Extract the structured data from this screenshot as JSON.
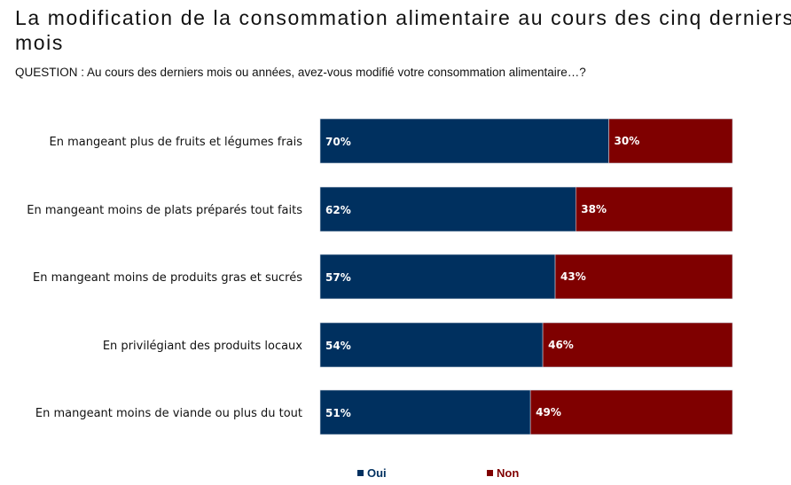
{
  "chart_data": {
    "type": "bar",
    "orientation": "horizontal",
    "stacked": true,
    "title": "La modification de la consommation alimentaire au cours des cinq derniers mois",
    "subtitle": "QUESTION : Au cours des derniers mois ou années, avez-vous modifié votre consommation alimentaire…?",
    "categories": [
      "En mangeant plus de fruits et légumes frais",
      "En mangeant moins de plats préparés tout faits",
      "En mangeant moins de produits gras et sucrés",
      "En privilégiant des produits locaux",
      "En mangeant moins de viande ou plus du tout"
    ],
    "series": [
      {
        "name": "Oui",
        "color": "#00305f",
        "values": [
          70,
          62,
          57,
          54,
          51
        ],
        "labels": [
          "70%",
          "62%",
          "57%",
          "54%",
          "51%"
        ]
      },
      {
        "name": "Non",
        "color": "#7f0000",
        "values": [
          30,
          38,
          43,
          46,
          49
        ],
        "labels": [
          "30%",
          "38%",
          "43%",
          "46%",
          "49%"
        ]
      }
    ],
    "xlim": [
      0,
      100
    ],
    "grid": false,
    "legend": "bottom"
  }
}
